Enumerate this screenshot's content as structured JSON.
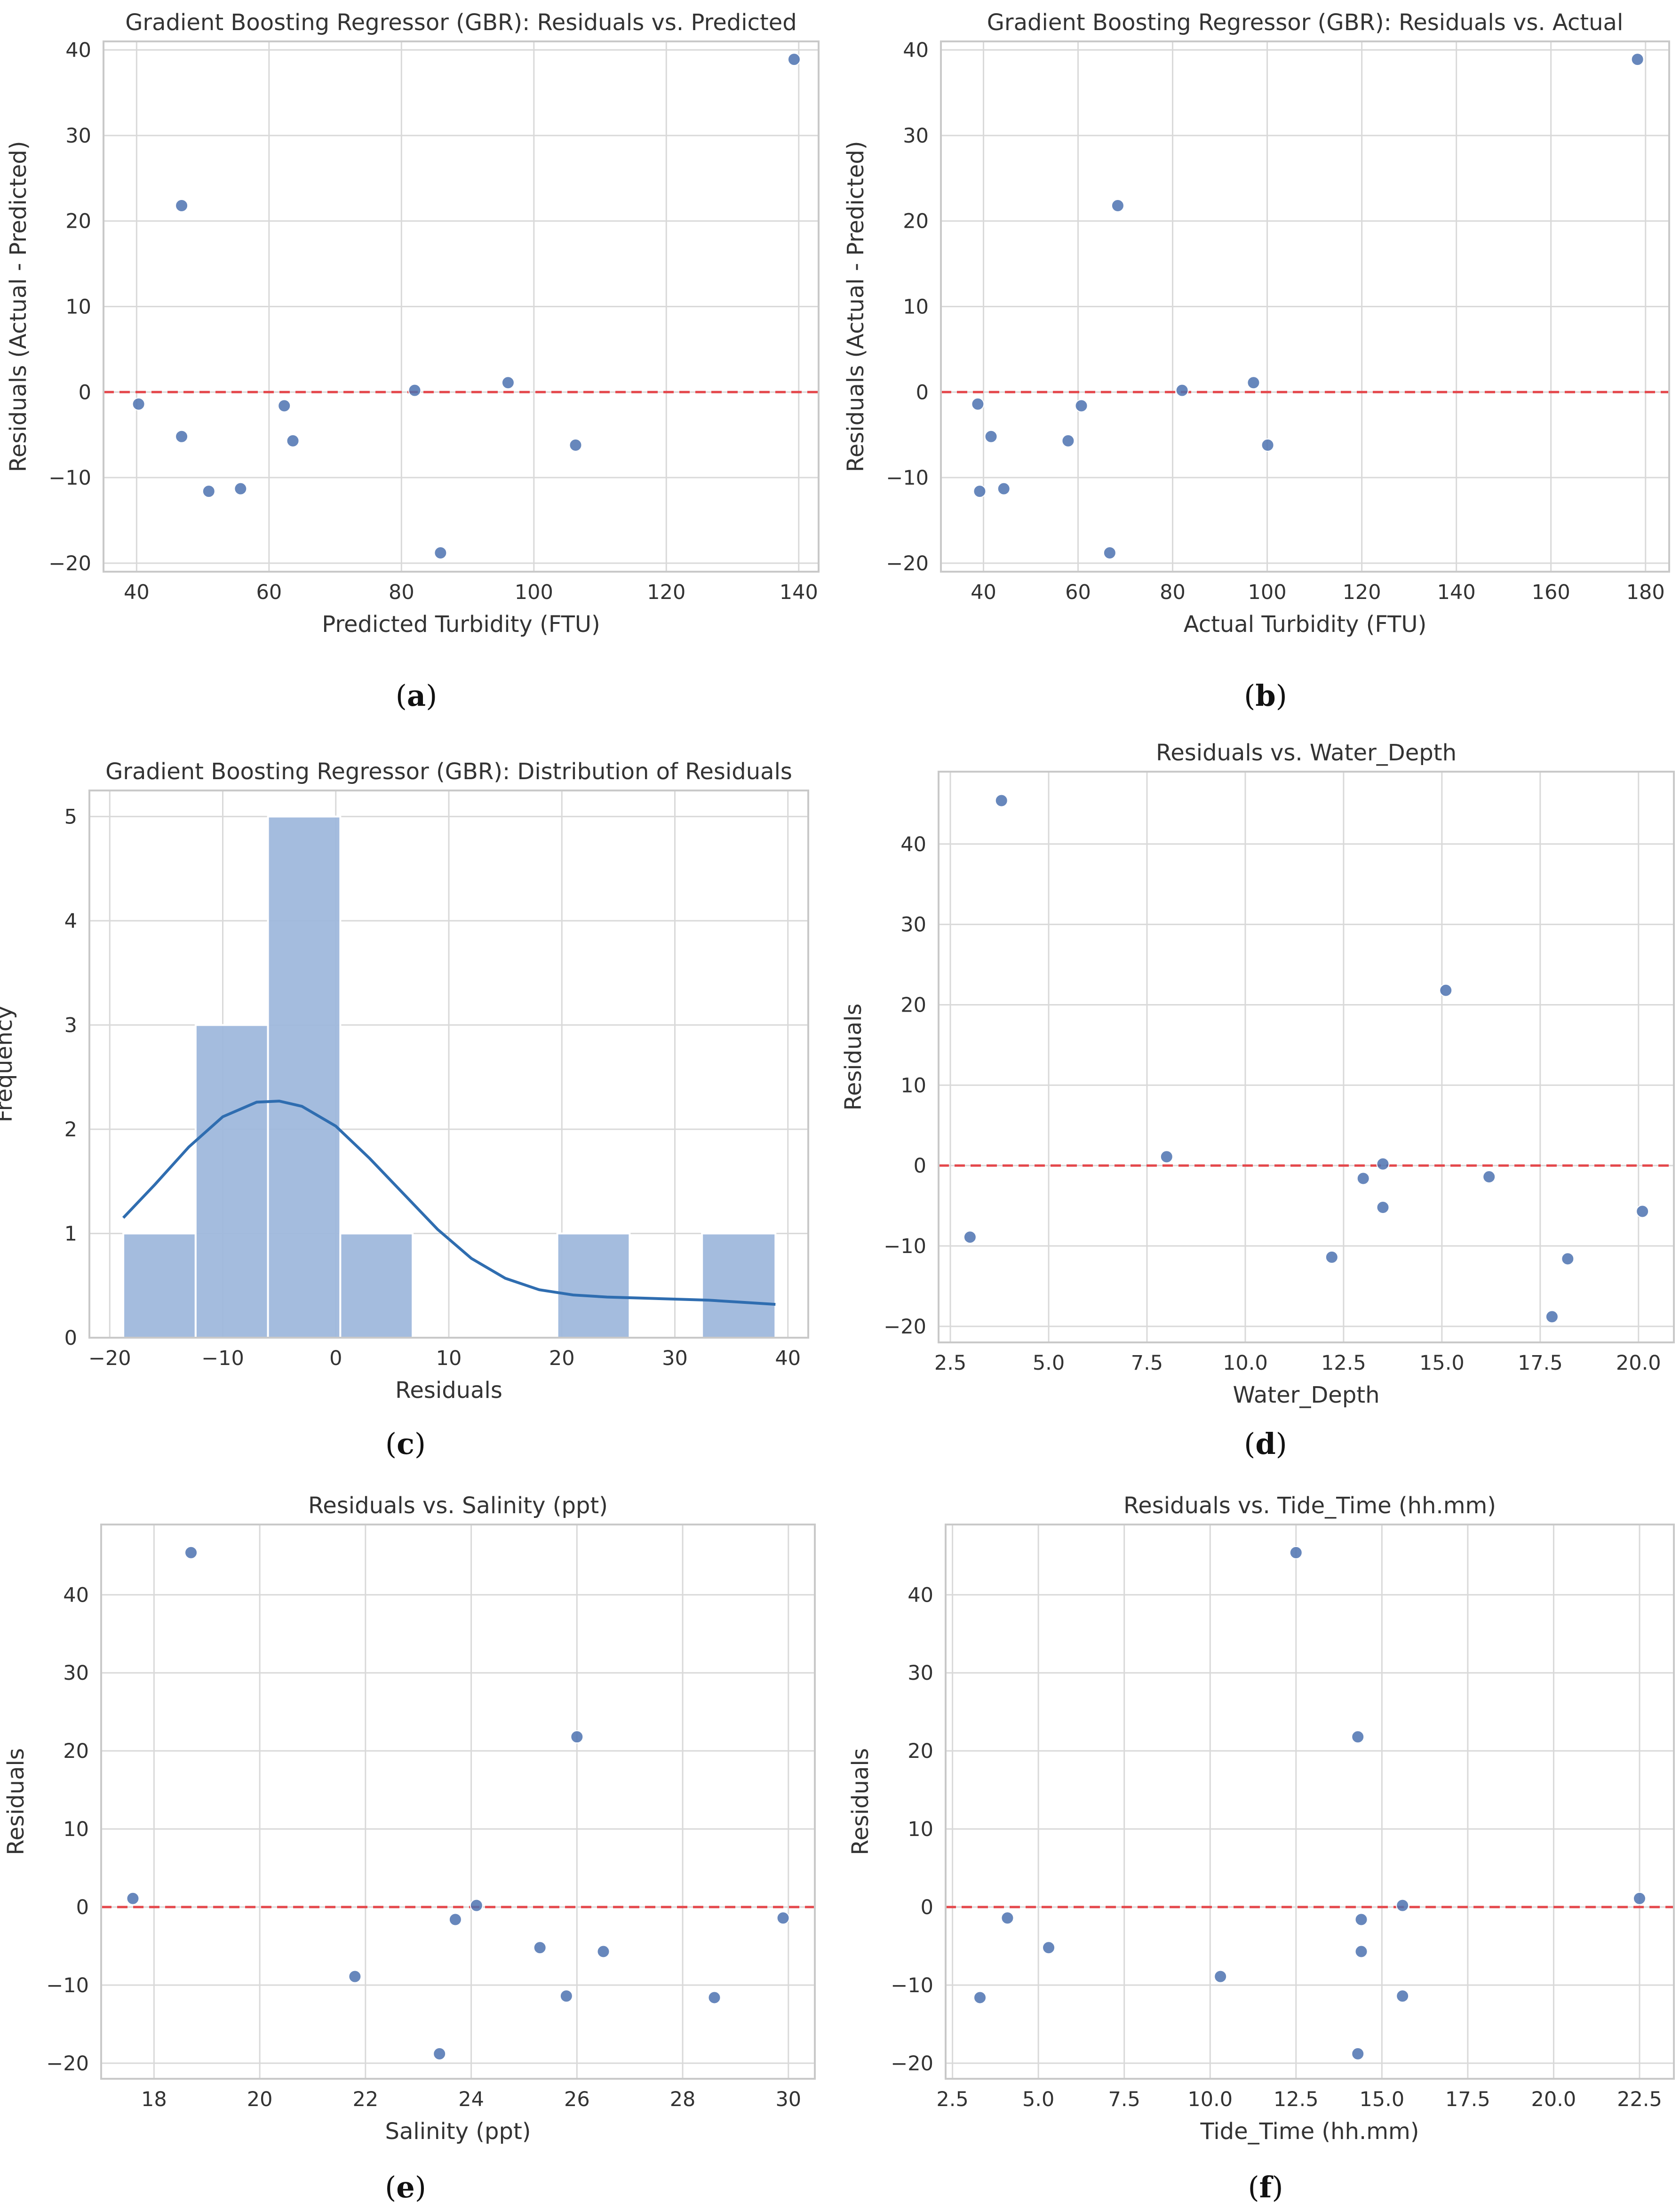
{
  "colors": {
    "point": "#4c72b0",
    "bar_fill": "#9fb8dc",
    "bar_edge": "#ffffff",
    "kde": "#2f6db0",
    "reference_line": "#e4474b",
    "grid": "#d9d9d9",
    "frame": "#c9c9c9"
  },
  "chart_data": [
    {
      "id": "a",
      "panel_label": "a",
      "type": "scatter",
      "title": "Gradient Boosting Regressor (GBR): Residuals vs. Predicted",
      "xlabel": "Predicted Turbidity (FTU)",
      "ylabel": "Residuals (Actual - Predicted)",
      "xlim": [
        35,
        143
      ],
      "ylim": [
        -21,
        41
      ],
      "xticks": [
        40,
        60,
        80,
        100,
        120,
        140
      ],
      "yticks": [
        -20,
        -10,
        0,
        10,
        20,
        30,
        40
      ],
      "reference_line": 0,
      "points": [
        {
          "x": 40.3,
          "y": -1.4
        },
        {
          "x": 46.8,
          "y": 21.8
        },
        {
          "x": 46.8,
          "y": -5.2
        },
        {
          "x": 50.9,
          "y": -11.6
        },
        {
          "x": 55.7,
          "y": -11.3
        },
        {
          "x": 62.3,
          "y": -1.6
        },
        {
          "x": 63.6,
          "y": -5.7
        },
        {
          "x": 82.0,
          "y": 0.2
        },
        {
          "x": 85.9,
          "y": -18.8
        },
        {
          "x": 96.1,
          "y": 1.1
        },
        {
          "x": 106.3,
          "y": -6.2
        },
        {
          "x": 139.3,
          "y": 38.9
        }
      ]
    },
    {
      "id": "b",
      "panel_label": "b",
      "type": "scatter",
      "title": "Gradient Boosting Regressor (GBR): Residuals vs. Actual",
      "xlabel": "Actual Turbidity (FTU)",
      "ylabel": "Residuals (Actual - Predicted)",
      "xlim": [
        31,
        185
      ],
      "ylim": [
        -21,
        41
      ],
      "xticks": [
        40,
        60,
        80,
        100,
        120,
        140,
        160,
        180
      ],
      "yticks": [
        -20,
        -10,
        0,
        10,
        20,
        30,
        40
      ],
      "reference_line": 0,
      "points": [
        {
          "x": 38.8,
          "y": -1.4
        },
        {
          "x": 39.2,
          "y": -11.6
        },
        {
          "x": 41.6,
          "y": -5.2
        },
        {
          "x": 44.3,
          "y": -11.3
        },
        {
          "x": 57.9,
          "y": -5.7
        },
        {
          "x": 60.7,
          "y": -1.6
        },
        {
          "x": 66.7,
          "y": -18.8
        },
        {
          "x": 68.4,
          "y": 21.8
        },
        {
          "x": 82.0,
          "y": 0.2
        },
        {
          "x": 97.1,
          "y": 1.1
        },
        {
          "x": 100.1,
          "y": -6.2
        },
        {
          "x": 178.3,
          "y": 38.9
        }
      ]
    },
    {
      "id": "c",
      "panel_label": "c",
      "type": "histogram",
      "title": "Gradient Boosting Regressor (GBR): Distribution of Residuals",
      "xlabel": "Residuals",
      "ylabel": "Frequency",
      "xlim": [
        -21.8,
        41.8
      ],
      "ylim": [
        0,
        5.25
      ],
      "xticks": [
        -20,
        -10,
        0,
        10,
        20,
        30,
        40
      ],
      "yticks": [
        0,
        1,
        2,
        3,
        4,
        5
      ],
      "bins": [
        {
          "start": -18.8,
          "end": -12.4,
          "count": 1
        },
        {
          "start": -12.4,
          "end": -6.0,
          "count": 3
        },
        {
          "start": -6.0,
          "end": 0.4,
          "count": 5
        },
        {
          "start": 0.4,
          "end": 6.8,
          "count": 1
        },
        {
          "start": 6.8,
          "end": 13.2,
          "count": 0
        },
        {
          "start": 13.2,
          "end": 19.6,
          "count": 0
        },
        {
          "start": 19.6,
          "end": 26.0,
          "count": 1
        },
        {
          "start": 26.0,
          "end": 32.4,
          "count": 0
        },
        {
          "start": 32.4,
          "end": 38.9,
          "count": 1
        }
      ],
      "kde": {
        "x": [
          -18.8,
          -16,
          -13,
          -10,
          -7,
          -5,
          -3,
          0,
          3,
          6,
          9,
          12,
          15,
          18,
          21,
          24,
          27,
          30,
          33,
          36,
          38.9
        ],
        "y": [
          1.15,
          1.47,
          1.83,
          2.12,
          2.26,
          2.27,
          2.22,
          2.03,
          1.72,
          1.38,
          1.04,
          0.76,
          0.57,
          0.46,
          0.41,
          0.39,
          0.38,
          0.37,
          0.36,
          0.34,
          0.32
        ]
      }
    },
    {
      "id": "d",
      "panel_label": "d",
      "type": "scatter",
      "title": "Residuals vs. Water_Depth",
      "xlabel": "Water_Depth",
      "ylabel": "Residuals",
      "xlim": [
        2.2,
        20.9
      ],
      "ylim": [
        -22,
        49
      ],
      "xticks": [
        "2.5",
        "5.0",
        "7.5",
        "10.0",
        "12.5",
        "15.0",
        "17.5",
        "20.0"
      ],
      "yticks": [
        -20,
        -10,
        0,
        10,
        20,
        30,
        40
      ],
      "reference_line": 0,
      "points": [
        {
          "x": 3.0,
          "y": -8.9
        },
        {
          "x": 3.8,
          "y": 45.4
        },
        {
          "x": 8.0,
          "y": 1.1
        },
        {
          "x": 12.2,
          "y": -11.4
        },
        {
          "x": 13.0,
          "y": -1.6
        },
        {
          "x": 13.5,
          "y": -5.2
        },
        {
          "x": 13.5,
          "y": 0.2
        },
        {
          "x": 15.1,
          "y": 21.8
        },
        {
          "x": 16.2,
          "y": -1.4
        },
        {
          "x": 17.8,
          "y": -18.8
        },
        {
          "x": 18.2,
          "y": -11.6
        },
        {
          "x": 20.1,
          "y": -5.7
        }
      ]
    },
    {
      "id": "e",
      "panel_label": "e",
      "type": "scatter",
      "title": "Residuals vs. Salinity (ppt)",
      "xlabel": "Salinity (ppt)",
      "ylabel": "Residuals",
      "xlim": [
        17.0,
        30.5
      ],
      "ylim": [
        -22,
        49
      ],
      "xticks": [
        18,
        20,
        22,
        24,
        26,
        28,
        30
      ],
      "yticks": [
        -20,
        -10,
        0,
        10,
        20,
        30,
        40
      ],
      "reference_line": 0,
      "points": [
        {
          "x": 17.6,
          "y": 1.1
        },
        {
          "x": 18.7,
          "y": 45.4
        },
        {
          "x": 21.8,
          "y": -8.9
        },
        {
          "x": 23.4,
          "y": -18.8
        },
        {
          "x": 23.7,
          "y": -1.6
        },
        {
          "x": 24.1,
          "y": 0.2
        },
        {
          "x": 25.3,
          "y": -5.2
        },
        {
          "x": 25.8,
          "y": -11.4
        },
        {
          "x": 26.0,
          "y": 21.8
        },
        {
          "x": 26.5,
          "y": -5.7
        },
        {
          "x": 28.6,
          "y": -11.6
        },
        {
          "x": 29.9,
          "y": -1.4
        }
      ]
    },
    {
      "id": "f",
      "panel_label": "f",
      "type": "scatter",
      "title": "Residuals vs. Tide_Time (hh.mm)",
      "xlabel": "Tide_Time (hh.mm)",
      "ylabel": "Residuals",
      "xlim": [
        2.3,
        23.5
      ],
      "ylim": [
        -22,
        49
      ],
      "xticks": [
        "2.5",
        "5.0",
        "7.5",
        "10.0",
        "12.5",
        "15.0",
        "17.5",
        "20.0",
        "22.5"
      ],
      "yticks": [
        -20,
        -10,
        0,
        10,
        20,
        30,
        40
      ],
      "reference_line": 0,
      "points": [
        {
          "x": 3.3,
          "y": -11.6
        },
        {
          "x": 4.1,
          "y": -1.4
        },
        {
          "x": 5.3,
          "y": -5.2
        },
        {
          "x": 10.3,
          "y": -8.9
        },
        {
          "x": 12.5,
          "y": 45.4
        },
        {
          "x": 14.3,
          "y": 21.8
        },
        {
          "x": 14.3,
          "y": -18.8
        },
        {
          "x": 14.4,
          "y": -1.6
        },
        {
          "x": 14.4,
          "y": -5.7
        },
        {
          "x": 15.6,
          "y": 0.2
        },
        {
          "x": 15.6,
          "y": -11.4
        },
        {
          "x": 22.5,
          "y": 1.1
        }
      ]
    }
  ]
}
